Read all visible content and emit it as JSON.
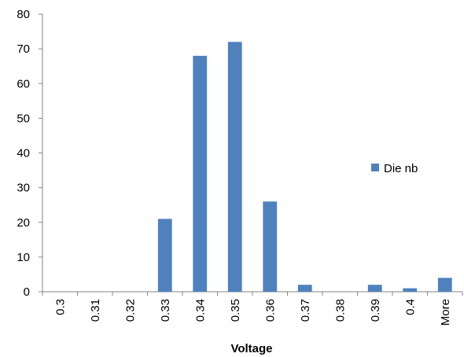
{
  "chart_data": {
    "type": "bar",
    "categories": [
      "0.3",
      "0.31",
      "0.32",
      "0.33",
      "0.34",
      "0.35",
      "0.36",
      "0.37",
      "0.38",
      "0.39",
      "0.4",
      "More"
    ],
    "series": [
      {
        "name": "Die nb",
        "values": [
          0,
          0,
          0,
          21,
          68,
          72,
          26,
          2,
          0,
          2,
          1,
          4
        ],
        "color": "#4F81BD"
      }
    ],
    "xlabel": "Voltage",
    "ylabel": "",
    "title": "",
    "ylim": [
      0,
      80
    ],
    "yticks": [
      0,
      10,
      20,
      30,
      40,
      50,
      60,
      70,
      80
    ],
    "grid": false,
    "legend_position": "right"
  }
}
